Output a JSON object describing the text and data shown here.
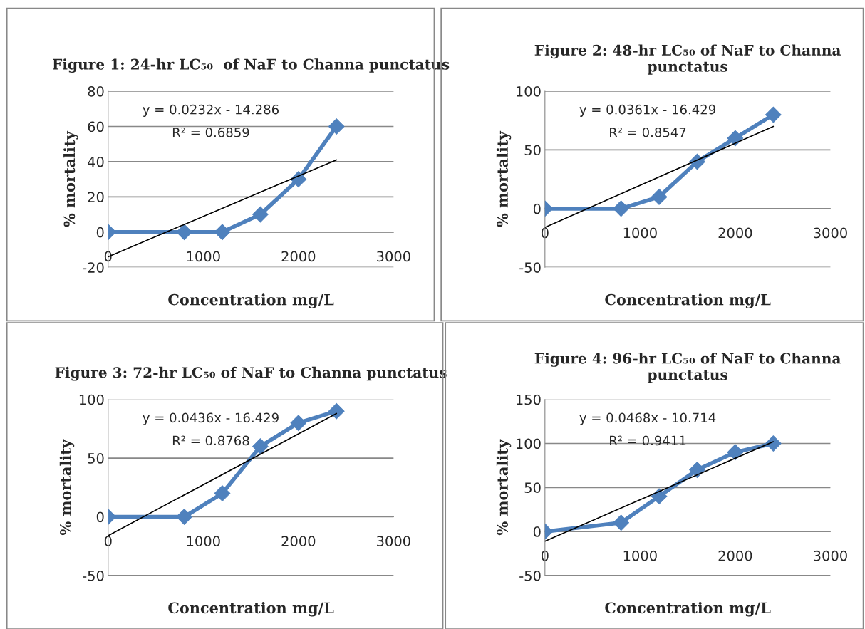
{
  "chart_data": [
    {
      "type": "line",
      "title": "Figure 1: 24-hr LC₅₀  of NaF to Channa punctatus",
      "xlabel": "Concentration mg/L",
      "ylabel": "% mortality",
      "xlim": [
        0,
        3000
      ],
      "xticks": [
        0,
        1000,
        2000,
        3000
      ],
      "ylim": [
        -20,
        80
      ],
      "yticks": [
        -20,
        0,
        20,
        40,
        60,
        80
      ],
      "grid": "y",
      "legend": false,
      "marker": "diamond",
      "series": [
        {
          "color": "#4f81bd",
          "x": [
            0,
            800,
            1200,
            1600,
            2000,
            2400
          ],
          "values": [
            0,
            0,
            0,
            10,
            30,
            60
          ]
        },
        {
          "type": "line",
          "color": "#000000",
          "marker": "none",
          "x": [
            0,
            2400
          ],
          "values": [
            -14,
            41
          ]
        }
      ],
      "annotations": [
        "y = 0.0232x - 14.286",
        "R² = 0.6859"
      ]
    },
    {
      "type": "line",
      "title": "Figure 2: 48-hr LC₅₀ of NaF to Channa punctatus",
      "xlabel": "Concentration mg/L",
      "ylabel": "% mortality",
      "xlim": [
        0,
        3000
      ],
      "xticks": [
        0,
        1000,
        2000,
        3000
      ],
      "ylim": [
        -50,
        100
      ],
      "yticks": [
        -50,
        0,
        50,
        100
      ],
      "grid": "y",
      "legend": false,
      "marker": "diamond",
      "series": [
        {
          "color": "#4f81bd",
          "x": [
            0,
            800,
            1200,
            1600,
            2000,
            2400
          ],
          "values": [
            0,
            0,
            10,
            40,
            60,
            80
          ]
        },
        {
          "type": "line",
          "color": "#000000",
          "marker": "none",
          "x": [
            0,
            2400
          ],
          "values": [
            -16,
            70
          ]
        }
      ],
      "annotations": [
        "y = 0.0361x - 16.429",
        "R² = 0.8547"
      ]
    },
    {
      "type": "line",
      "title": "Figure 3: 72-hr LC₅₀ of NaF to Channa punctatus",
      "xlabel": "Concentration mg/L",
      "ylabel": "% mortality",
      "xlim": [
        0,
        3000
      ],
      "xticks": [
        0,
        1000,
        2000,
        3000
      ],
      "ylim": [
        -50,
        100
      ],
      "yticks": [
        -50,
        0,
        50,
        100
      ],
      "grid": "y",
      "legend": false,
      "marker": "diamond",
      "series": [
        {
          "color": "#4f81bd",
          "x": [
            0,
            800,
            1200,
            1600,
            2000,
            2400
          ],
          "values": [
            0,
            0,
            20,
            60,
            80,
            90
          ]
        },
        {
          "type": "line",
          "color": "#000000",
          "marker": "none",
          "x": [
            0,
            2400
          ],
          "values": [
            -16,
            88
          ]
        }
      ],
      "annotations": [
        "y = 0.0436x - 16.429",
        "R² = 0.8768"
      ]
    },
    {
      "type": "line",
      "title": "Figure 4: 96-hr LC₅₀ of NaF to Channa punctatus",
      "xlabel": "Concentration mg/L",
      "ylabel": "% mortality",
      "xlim": [
        0,
        3000
      ],
      "xticks": [
        0,
        1000,
        2000,
        3000
      ],
      "ylim": [
        -50,
        150
      ],
      "yticks": [
        -50,
        0,
        50,
        100,
        150
      ],
      "grid": "y",
      "legend": false,
      "marker": "diamond",
      "series": [
        {
          "color": "#4f81bd",
          "x": [
            0,
            800,
            1200,
            1600,
            2000,
            2400
          ],
          "values": [
            0,
            10,
            40,
            70,
            90,
            100
          ]
        },
        {
          "type": "line",
          "color": "#000000",
          "marker": "none",
          "x": [
            0,
            2400
          ],
          "values": [
            -11,
            102
          ]
        }
      ],
      "annotations": [
        "y = 0.0468x - 10.714",
        "R² = 0.9411"
      ]
    }
  ]
}
